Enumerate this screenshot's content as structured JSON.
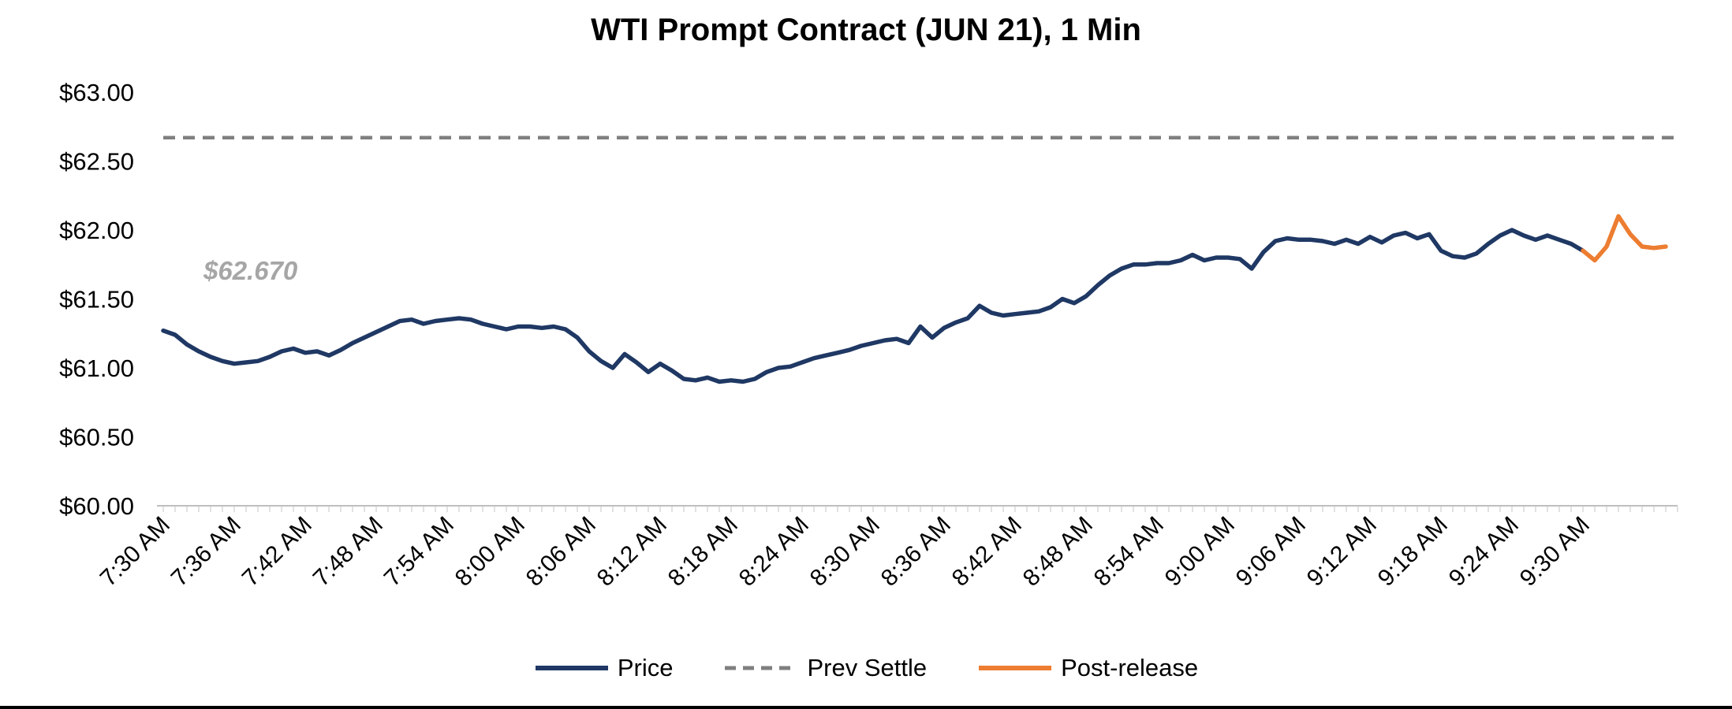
{
  "chart_data": {
    "type": "line",
    "title": "WTI Prompt Contract (JUN 21), 1 Min",
    "xlabel": "",
    "ylabel": "",
    "ylim": [
      60.0,
      63.0
    ],
    "grid": false,
    "legend_position": "bottom",
    "y_ticks": [
      {
        "label": "$63.00",
        "value": 63.0
      },
      {
        "label": "$62.50",
        "value": 62.5
      },
      {
        "label": "$62.00",
        "value": 62.0
      },
      {
        "label": "$61.50",
        "value": 61.5
      },
      {
        "label": "$61.00",
        "value": 61.0
      },
      {
        "label": "$60.50",
        "value": 60.5
      },
      {
        "label": "$60.00",
        "value": 60.0
      }
    ],
    "x_ticks": [
      {
        "label": "7:30 AM",
        "min": 0
      },
      {
        "label": "7:36 AM",
        "min": 6
      },
      {
        "label": "7:42 AM",
        "min": 12
      },
      {
        "label": "7:48 AM",
        "min": 18
      },
      {
        "label": "7:54 AM",
        "min": 24
      },
      {
        "label": "8:00 AM",
        "min": 30
      },
      {
        "label": "8:06 AM",
        "min": 36
      },
      {
        "label": "8:12 AM",
        "min": 42
      },
      {
        "label": "8:18 AM",
        "min": 48
      },
      {
        "label": "8:24 AM",
        "min": 54
      },
      {
        "label": "8:30 AM",
        "min": 60
      },
      {
        "label": "8:36 AM",
        "min": 66
      },
      {
        "label": "8:42 AM",
        "min": 72
      },
      {
        "label": "8:48 AM",
        "min": 78
      },
      {
        "label": "8:54 AM",
        "min": 84
      },
      {
        "label": "9:00 AM",
        "min": 90
      },
      {
        "label": "9:06 AM",
        "min": 96
      },
      {
        "label": "9:12 AM",
        "min": 102
      },
      {
        "label": "9:18 AM",
        "min": 108
      },
      {
        "label": "9:24 AM",
        "min": 114
      },
      {
        "label": "9:30 AM",
        "min": 120
      }
    ],
    "x_axis_max_min": 128,
    "x_minor_tick_every_min": 1,
    "prev_settle": {
      "label": "Prev Settle",
      "value": 62.67,
      "color": "#7F7F7F"
    },
    "annotation": {
      "text": "$62.670",
      "color": "#A6A6A6"
    },
    "series": [
      {
        "name": "Price",
        "color": "#1F3864",
        "x_start_min": 0,
        "x_step_min": 1,
        "values": [
          61.27,
          61.24,
          61.17,
          61.12,
          61.08,
          61.05,
          61.03,
          61.04,
          61.05,
          61.08,
          61.12,
          61.14,
          61.11,
          61.12,
          61.09,
          61.13,
          61.18,
          61.22,
          61.26,
          61.3,
          61.34,
          61.35,
          61.32,
          61.34,
          61.35,
          61.36,
          61.35,
          61.32,
          61.3,
          61.28,
          61.3,
          61.3,
          61.29,
          61.3,
          61.28,
          61.22,
          61.12,
          61.05,
          61.0,
          61.1,
          61.04,
          60.97,
          61.03,
          60.98,
          60.92,
          60.91,
          60.93,
          60.9,
          60.91,
          60.9,
          60.92,
          60.97,
          61.0,
          61.01,
          61.04,
          61.07,
          61.09,
          61.11,
          61.13,
          61.16,
          61.18,
          61.2,
          61.21,
          61.18,
          61.3,
          61.22,
          61.29,
          61.33,
          61.36,
          61.45,
          61.4,
          61.38,
          61.39,
          61.4,
          61.41,
          61.44,
          61.5,
          61.47,
          61.52,
          61.6,
          61.67,
          61.72,
          61.75,
          61.75,
          61.76,
          61.76,
          61.78,
          61.82,
          61.78,
          61.8,
          61.8,
          61.79,
          61.72,
          61.84,
          61.92,
          61.94,
          61.93,
          61.93,
          61.92,
          61.9,
          61.93,
          61.9,
          61.95,
          61.91,
          61.96,
          61.98,
          61.94,
          61.97,
          61.85,
          61.81,
          61.8,
          61.83,
          61.9,
          61.96,
          62.0,
          61.96,
          61.93,
          61.96,
          61.93,
          61.9,
          61.85
        ]
      },
      {
        "name": "Post-release",
        "color": "#ED7D31",
        "x_start_min": 120,
        "x_step_min": 1,
        "values": [
          61.85,
          61.78,
          61.88,
          62.1,
          61.97,
          61.88,
          61.87,
          61.88
        ]
      }
    ],
    "legend": [
      {
        "label": "Price",
        "color": "#1F3864",
        "style": "solid"
      },
      {
        "label": "Prev Settle",
        "color": "#7F7F7F",
        "style": "dashed"
      },
      {
        "label": "Post-release",
        "color": "#ED7D31",
        "style": "solid"
      }
    ]
  }
}
